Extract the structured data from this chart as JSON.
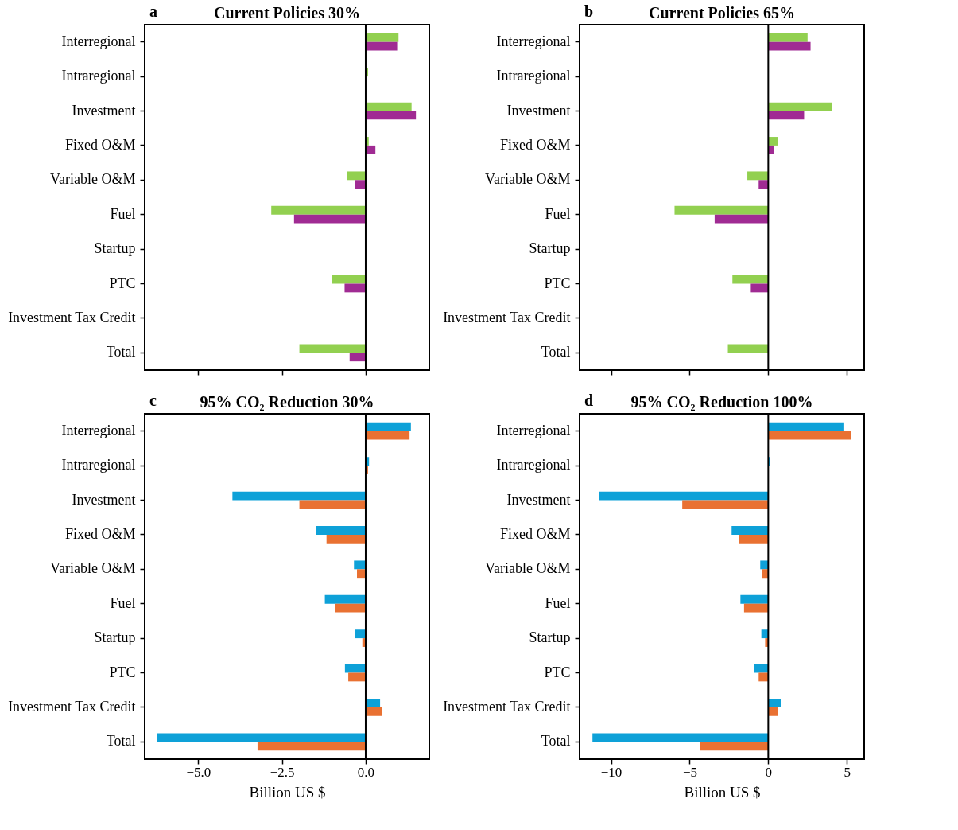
{
  "chart_data": [
    {
      "type": "bar",
      "orientation": "horizontal",
      "title": "Current Policies 30%",
      "annotations": [
        "a"
      ],
      "tick_labels": "y",
      "categories": [
        "Interregional",
        "Intraregional",
        "Investment",
        "Fixed O&M",
        "Variable O&M",
        "Fuel",
        "Startup",
        "PTC",
        "Investment Tax Credit",
        "Total"
      ],
      "series": [
        {
          "color": "#92d050",
          "values": [
            0.98,
            0.07,
            1.37,
            0.09,
            -0.57,
            -2.82,
            0,
            -1.0,
            0,
            -1.98
          ]
        },
        {
          "color": "#a02b93",
          "values": [
            0.94,
            0,
            1.5,
            0.29,
            -0.33,
            -2.14,
            0,
            -0.63,
            0,
            -0.48
          ]
        }
      ],
      "xlim": [
        -6.6,
        1.9
      ],
      "xticks": [
        -5,
        -2.5,
        0
      ],
      "ref_lines": [
        {
          "axis": "x",
          "value": 0,
          "color": "#000000"
        }
      ]
    },
    {
      "type": "bar",
      "orientation": "horizontal",
      "title": "Current Policies 65%",
      "annotations": [
        "b"
      ],
      "tick_labels": "y",
      "categories": [
        "Interregional",
        "Intraregional",
        "Investment",
        "Fixed O&M",
        "Variable O&M",
        "Fuel",
        "Startup",
        "PTC",
        "Investment Tax Credit",
        "Total"
      ],
      "series": [
        {
          "color": "#92d050",
          "values": [
            2.5,
            0,
            4.05,
            0.59,
            -1.33,
            -5.96,
            0,
            -2.28,
            0,
            -2.57
          ]
        },
        {
          "color": "#a02b93",
          "values": [
            2.69,
            0,
            2.28,
            0.37,
            -0.61,
            -3.41,
            0,
            -1.11,
            0,
            0
          ]
        }
      ],
      "xlim": [
        -12,
        6.1
      ],
      "xticks": [
        -10,
        -5,
        0,
        5
      ],
      "ref_lines": [
        {
          "axis": "x",
          "value": 0,
          "color": "#000000"
        }
      ]
    },
    {
      "type": "bar",
      "orientation": "horizontal",
      "title": "95% CO₂ Reduction 30%",
      "annotations": [
        "c"
      ],
      "xlabel": "Billion US $",
      "categories": [
        "Interregional",
        "Intraregional",
        "Investment",
        "Fixed O&M",
        "Variable O&M",
        "Fuel",
        "Startup",
        "PTC",
        "Investment Tax Credit",
        "Total"
      ],
      "series": [
        {
          "color": "#0ea1d8",
          "values": [
            1.35,
            0.1,
            -3.98,
            -1.49,
            -0.35,
            -1.22,
            -0.33,
            -0.62,
            0.43,
            -6.23
          ]
        },
        {
          "color": "#e97132",
          "values": [
            1.31,
            0.07,
            -1.98,
            -1.17,
            -0.26,
            -0.92,
            -0.1,
            -0.52,
            0.48,
            -3.23
          ]
        }
      ],
      "xlim": [
        -6.6,
        1.9
      ],
      "xticks": [
        {
          "value": -5,
          "label": "−5.0"
        },
        {
          "value": -2.5,
          "label": "−2.5"
        },
        {
          "value": 0,
          "label": "0.0"
        }
      ],
      "ref_lines": [
        {
          "axis": "x",
          "value": 0,
          "color": "#000000"
        }
      ]
    },
    {
      "type": "bar",
      "orientation": "horizontal",
      "title": "95% CO₂ Reduction 100%",
      "annotations": [
        "d"
      ],
      "xlabel": "Billion US $",
      "categories": [
        "Interregional",
        "Intraregional",
        "Investment",
        "Fixed O&M",
        "Variable O&M",
        "Fuel",
        "Startup",
        "PTC",
        "Investment Tax Credit",
        "Total"
      ],
      "series": [
        {
          "color": "#0ea1d8",
          "values": [
            4.78,
            0.1,
            -10.76,
            -2.33,
            -0.51,
            -1.77,
            -0.44,
            -0.91,
            0.79,
            -11.18
          ]
        },
        {
          "color": "#e97132",
          "values": [
            5.27,
            0,
            -5.47,
            -1.84,
            -0.42,
            -1.54,
            -0.2,
            -0.61,
            0.63,
            -4.34
          ]
        }
      ],
      "xlim": [
        -12,
        6.1
      ],
      "xticks": [
        {
          "value": -10,
          "label": "−10"
        },
        {
          "value": -5,
          "label": "−5"
        },
        0,
        5
      ],
      "ref_lines": [
        {
          "axis": "x",
          "value": 0,
          "color": "#000000"
        }
      ]
    }
  ]
}
